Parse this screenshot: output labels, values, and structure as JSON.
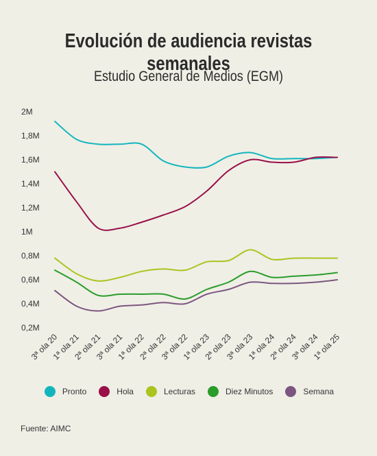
{
  "title": "Evolución de audiencia revistas semanales",
  "subtitle": "Estudio General de Medios (EGM)",
  "source": "Fuente: AIMC",
  "chart_data": {
    "type": "line",
    "categories": [
      "3ª ola 20",
      "1ª ola 21",
      "2ª ola 21",
      "3ª ola 21",
      "1ª ola 22",
      "2ª ola 22",
      "3ª ola 22",
      "1ª ola 23",
      "2ª ola 23",
      "3ª ola 23",
      "1ª ola 24",
      "2ª ola 24",
      "3ª ola 24",
      "1ª ola 25"
    ],
    "y_ticks": [
      {
        "value": 0.2,
        "label": "0,2M"
      },
      {
        "value": 0.4,
        "label": "0,4M"
      },
      {
        "value": 0.6,
        "label": "0,6M"
      },
      {
        "value": 0.8,
        "label": "0,8M"
      },
      {
        "value": 1.0,
        "label": "1M"
      },
      {
        "value": 1.2,
        "label": "1,2M"
      },
      {
        "value": 1.4,
        "label": "1,4M"
      },
      {
        "value": 1.6,
        "label": "1,6M"
      },
      {
        "value": 1.8,
        "label": "1,8M"
      },
      {
        "value": 2.0,
        "label": "2M"
      }
    ],
    "ylim": [
      0.2,
      2.0
    ],
    "grid": false,
    "legend_position": "bottom",
    "series": [
      {
        "name": "Pronto",
        "color": "#13b5bd",
        "values": [
          1.92,
          1.77,
          1.73,
          1.73,
          1.73,
          1.59,
          1.54,
          1.54,
          1.63,
          1.66,
          1.61,
          1.61,
          1.61,
          1.62
        ]
      },
      {
        "name": "Hola",
        "color": "#99104a",
        "values": [
          1.5,
          1.25,
          1.03,
          1.03,
          1.08,
          1.14,
          1.21,
          1.34,
          1.51,
          1.6,
          1.58,
          1.58,
          1.62,
          1.62
        ]
      },
      {
        "name": "Lecturas",
        "color": "#abc41f",
        "values": [
          0.78,
          0.65,
          0.59,
          0.62,
          0.67,
          0.69,
          0.68,
          0.75,
          0.76,
          0.85,
          0.77,
          0.78,
          0.78,
          0.78
        ]
      },
      {
        "name": "Diez Minutos",
        "color": "#2a9c2a",
        "values": [
          0.68,
          0.58,
          0.47,
          0.48,
          0.48,
          0.48,
          0.44,
          0.52,
          0.58,
          0.67,
          0.62,
          0.63,
          0.64,
          0.66
        ]
      },
      {
        "name": "Semana",
        "color": "#7c567f",
        "values": [
          0.51,
          0.38,
          0.34,
          0.38,
          0.39,
          0.41,
          0.4,
          0.48,
          0.52,
          0.58,
          0.57,
          0.57,
          0.58,
          0.6
        ]
      }
    ]
  }
}
